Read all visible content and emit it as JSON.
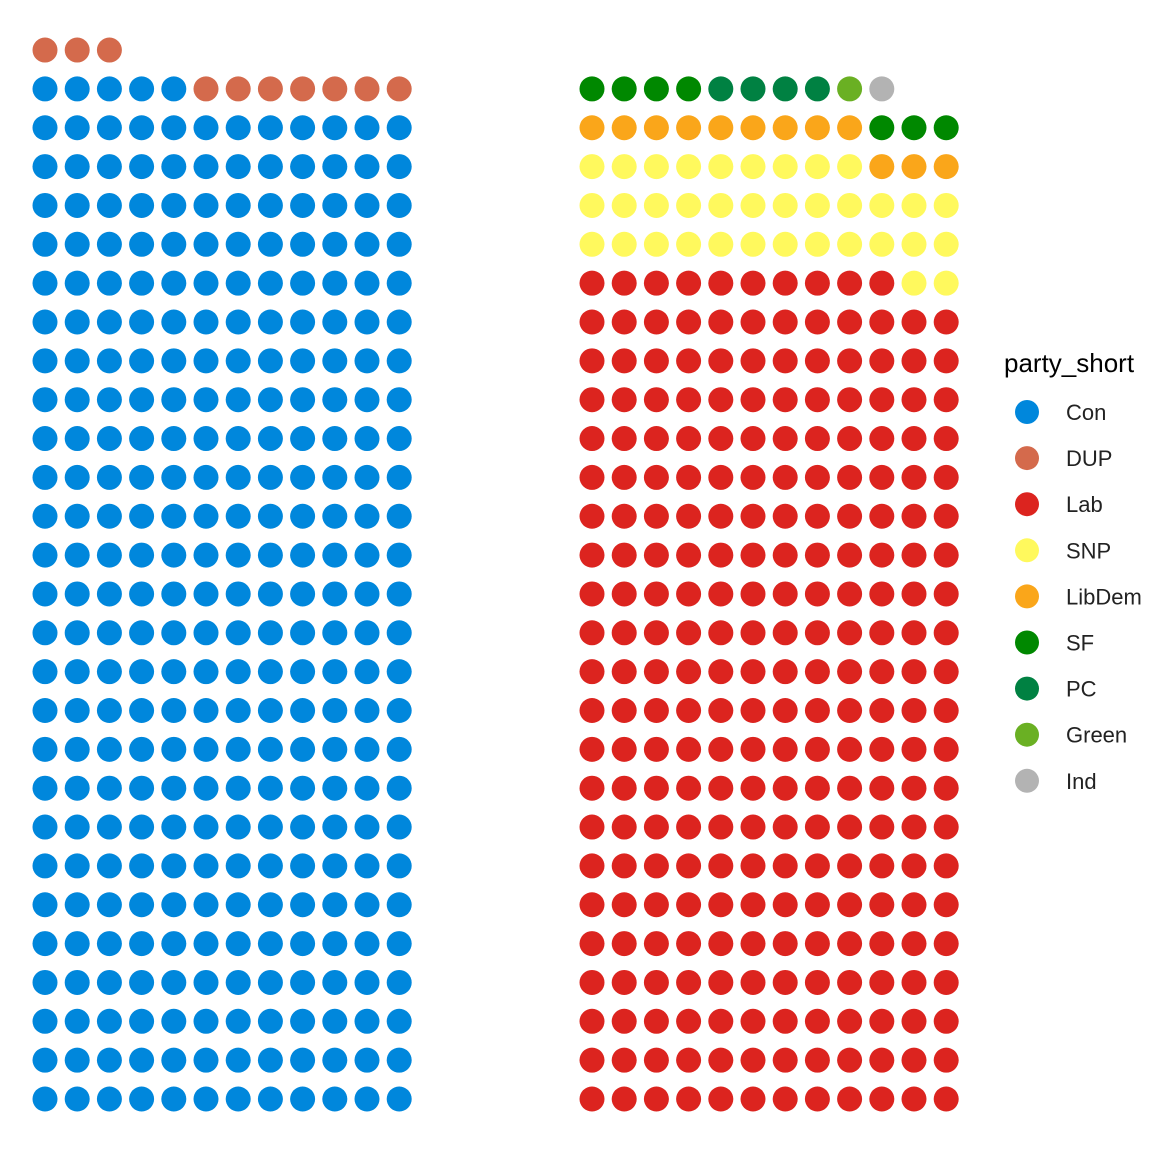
{
  "chart_data": {
    "type": "scatter",
    "description_kind": "waffle / parliament seat chart",
    "legend": {
      "title": "party_short",
      "placement": "right"
    },
    "parties": [
      {
        "name": "Con",
        "color": "#0087DC"
      },
      {
        "name": "DUP",
        "color": "#D46A4C"
      },
      {
        "name": "Lab",
        "color": "#DC241F"
      },
      {
        "name": "SNP",
        "color": "#FFF95D"
      },
      {
        "name": "LibDem",
        "color": "#FAA61A"
      },
      {
        "name": "SF",
        "color": "#008800"
      },
      {
        "name": "PC",
        "color": "#008142"
      },
      {
        "name": "Green",
        "color": "#6AB023"
      },
      {
        "name": "Ind",
        "color": "#B3B3B3"
      }
    ],
    "groups": [
      {
        "side": "left",
        "seats": [
          {
            "party": "Con",
            "count": 317
          },
          {
            "party": "DUP",
            "count": 10
          }
        ]
      },
      {
        "side": "right",
        "seats": [
          {
            "party": "Lab",
            "count": 262
          },
          {
            "party": "SNP",
            "count": 35
          },
          {
            "party": "LibDem",
            "count": 12
          },
          {
            "party": "SF",
            "count": 7
          },
          {
            "party": "PC",
            "count": 4
          },
          {
            "party": "Green",
            "count": 1
          },
          {
            "party": "Ind",
            "count": 1
          }
        ]
      }
    ],
    "columns_per_group": 12,
    "grid": false,
    "axes": false
  }
}
